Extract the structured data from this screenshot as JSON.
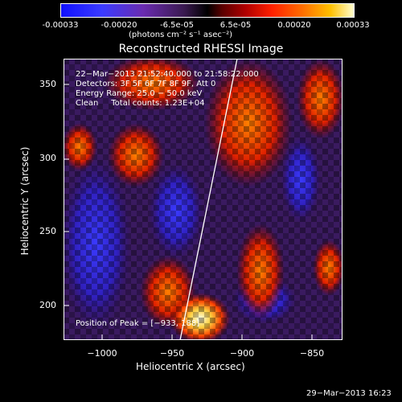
{
  "colorbar": {
    "ticks": [
      "-0.00033",
      "-0.00020",
      "-6.5e-05",
      "6.5e-05",
      "0.00020",
      "0.00033"
    ],
    "units": "(photons cm⁻² s⁻¹ asec⁻²)"
  },
  "plot": {
    "title": "Reconstructed RHESSI Image",
    "xlabel": "Heliocentric X (arcsec)",
    "ylabel": "Heliocentric Y (arcsec)",
    "xticks": [
      "−1000",
      "−950",
      "−900",
      "−850"
    ],
    "yticks": [
      "350",
      "300",
      "250",
      "200"
    ]
  },
  "info": {
    "time": "22−Mar−2013 21:52:40.000 to 21:58:22.000",
    "detectors": "Detectors: 3F 5F 6F 7F 8F 9F, Att 0",
    "energy": "Energy Range: 25.0 − 50.0 keV",
    "clean": "Clean     Total counts: 1.23E+04",
    "peak": "Position of Peak = [−933, 188]"
  },
  "footer": "29−Mar−2013 16:23",
  "colors": {
    "background": "#000000",
    "negative": "#3030ff",
    "positive": "#ff3000",
    "peak": "#ffffe0",
    "limb": "#ffffff"
  }
}
